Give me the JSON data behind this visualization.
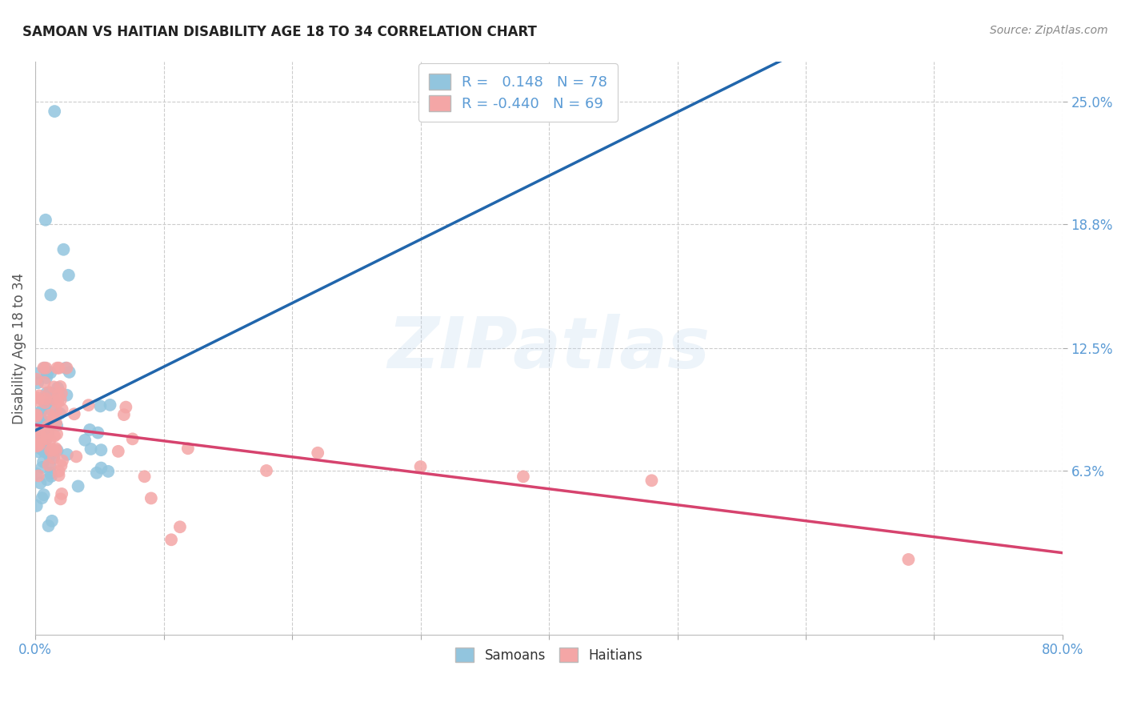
{
  "title": "SAMOAN VS HAITIAN DISABILITY AGE 18 TO 34 CORRELATION CHART",
  "source": "Source: ZipAtlas.com",
  "ylabel": "Disability Age 18 to 34",
  "ytick_labels": [
    "6.3%",
    "12.5%",
    "18.8%",
    "25.0%"
  ],
  "ytick_values": [
    0.063,
    0.125,
    0.188,
    0.25
  ],
  "xlim": [
    0.0,
    0.8
  ],
  "ylim": [
    -0.02,
    0.27
  ],
  "samoan_color": "#92c5de",
  "samoan_line_color": "#2166ac",
  "haitian_color": "#f4a6a6",
  "haitian_line_color": "#d6436e",
  "R_samoan": 0.148,
  "N_samoan": 78,
  "R_haitian": -0.44,
  "N_haitian": 69,
  "legend_label_samoan": "Samoans",
  "legend_label_haitian": "Haitians",
  "watermark_text": "ZIPatlas",
  "background_color": "#ffffff",
  "grid_color": "#cccccc",
  "tick_color": "#5b9bd5",
  "title_color": "#222222",
  "source_color": "#888888",
  "ylabel_color": "#555555"
}
